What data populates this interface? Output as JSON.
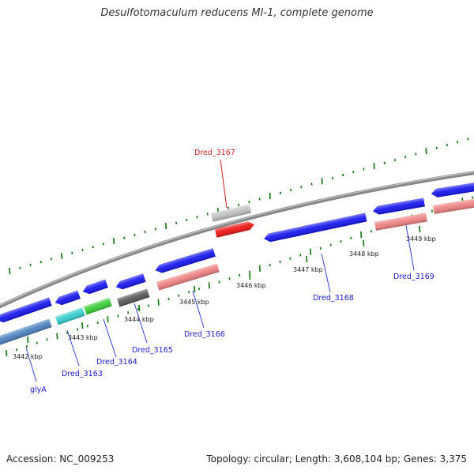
{
  "title": "Desulfotomaculum reducens MI-1, complete genome",
  "footer": {
    "accession": "Accession: NC_009253",
    "stats": "Topology: circular; Length: 3,608,104 bp; Genes: 3,375"
  },
  "colors": {
    "backbone": "#888888",
    "tick": "#1a7a1a",
    "label_blue": "#1a1acc",
    "label_red": "#cc2222",
    "leader_blue": "#3344cc",
    "leader_red": "#cc2222"
  },
  "kbp_ticks": [
    "3442 kbp",
    "3443 kbp",
    "3444 kbp",
    "3445 kbp",
    "3446 kbp",
    "3447 kbp",
    "3448 kbp",
    "3449 kbp"
  ],
  "genes": [
    {
      "label": "glyA",
      "color": "#4a7fbf",
      "strand": "reverse"
    },
    {
      "label": "Dred_3163",
      "color": "#33cccc",
      "strand": "reverse"
    },
    {
      "label": "Dred_3164",
      "color": "#33cc33",
      "strand": "reverse"
    },
    {
      "label": "Dred_3165",
      "color": "#555555",
      "strand": "reverse"
    },
    {
      "label": "Dred_3166",
      "color": "#ee7f7f",
      "strand": "reverse"
    },
    {
      "label": "Dred_3167",
      "color": "#ee1111",
      "strand": "forward"
    },
    {
      "label": "Dred_3168",
      "color": "#1111ee",
      "strand": "reverse"
    },
    {
      "label": "Dred_3169",
      "color": "#ee7f7f",
      "strand": "reverse"
    }
  ]
}
